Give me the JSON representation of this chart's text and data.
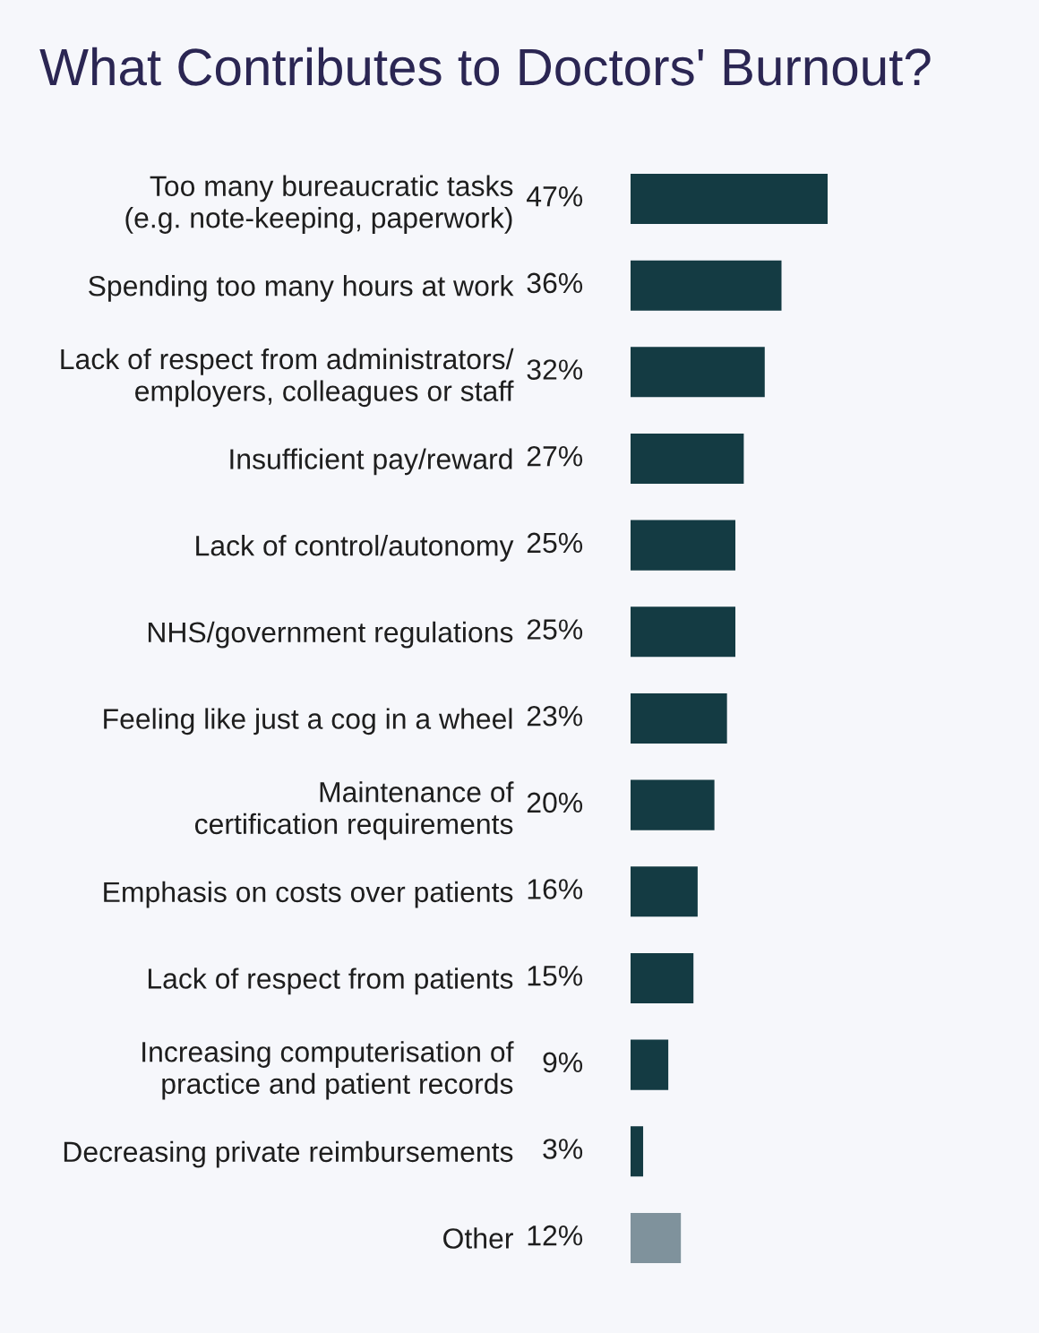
{
  "chart_data": {
    "type": "bar",
    "orientation": "horizontal",
    "title": "What Contributes to Doctors' Burnout?",
    "categories": [
      "Too many bureaucratic tasks\n(e.g. note-keeping, paperwork)",
      "Spending too many hours at work",
      "Lack of respect from administrators/\nemployers, colleagues or staff",
      "Insufficient pay/reward",
      "Lack of control/autonomy",
      "NHS/government regulations",
      "Feeling like just a cog in a wheel",
      "Maintenance of\ncertification requirements",
      "Emphasis on costs over patients",
      "Lack of respect from patients",
      "Increasing computerisation of\npractice and patient records",
      "Decreasing private reimbursements",
      "Other"
    ],
    "values": [
      47,
      36,
      32,
      27,
      25,
      25,
      23,
      20,
      16,
      15,
      9,
      3,
      12
    ],
    "value_labels": [
      "47%",
      "36%",
      "32%",
      "27%",
      "25%",
      "25%",
      "23%",
      "20%",
      "16%",
      "15%",
      "9%",
      "3%",
      "12%"
    ],
    "colors": [
      "#143b43",
      "#143b43",
      "#143b43",
      "#143b43",
      "#143b43",
      "#143b43",
      "#143b43",
      "#143b43",
      "#143b43",
      "#143b43",
      "#143b43",
      "#143b43",
      "#7f929c"
    ]
  }
}
